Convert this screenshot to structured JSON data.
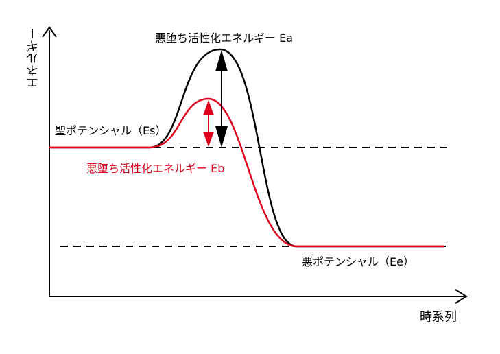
{
  "labels": {
    "activation_a": "悪堕ち活性化エネルギー Ea",
    "activation_b": "悪堕ち活性化エネルギー Eb",
    "saint_potential": "聖ポテンシャル（Es）",
    "evil_potential": "悪ポテンシャル（Ee）",
    "y_axis": "エネルギー",
    "x_axis": "時系列"
  },
  "colors": {
    "curve_a": "#000000",
    "curve_b": "#e0001b",
    "label_b": "#e0001b",
    "axes": "#000000"
  }
}
